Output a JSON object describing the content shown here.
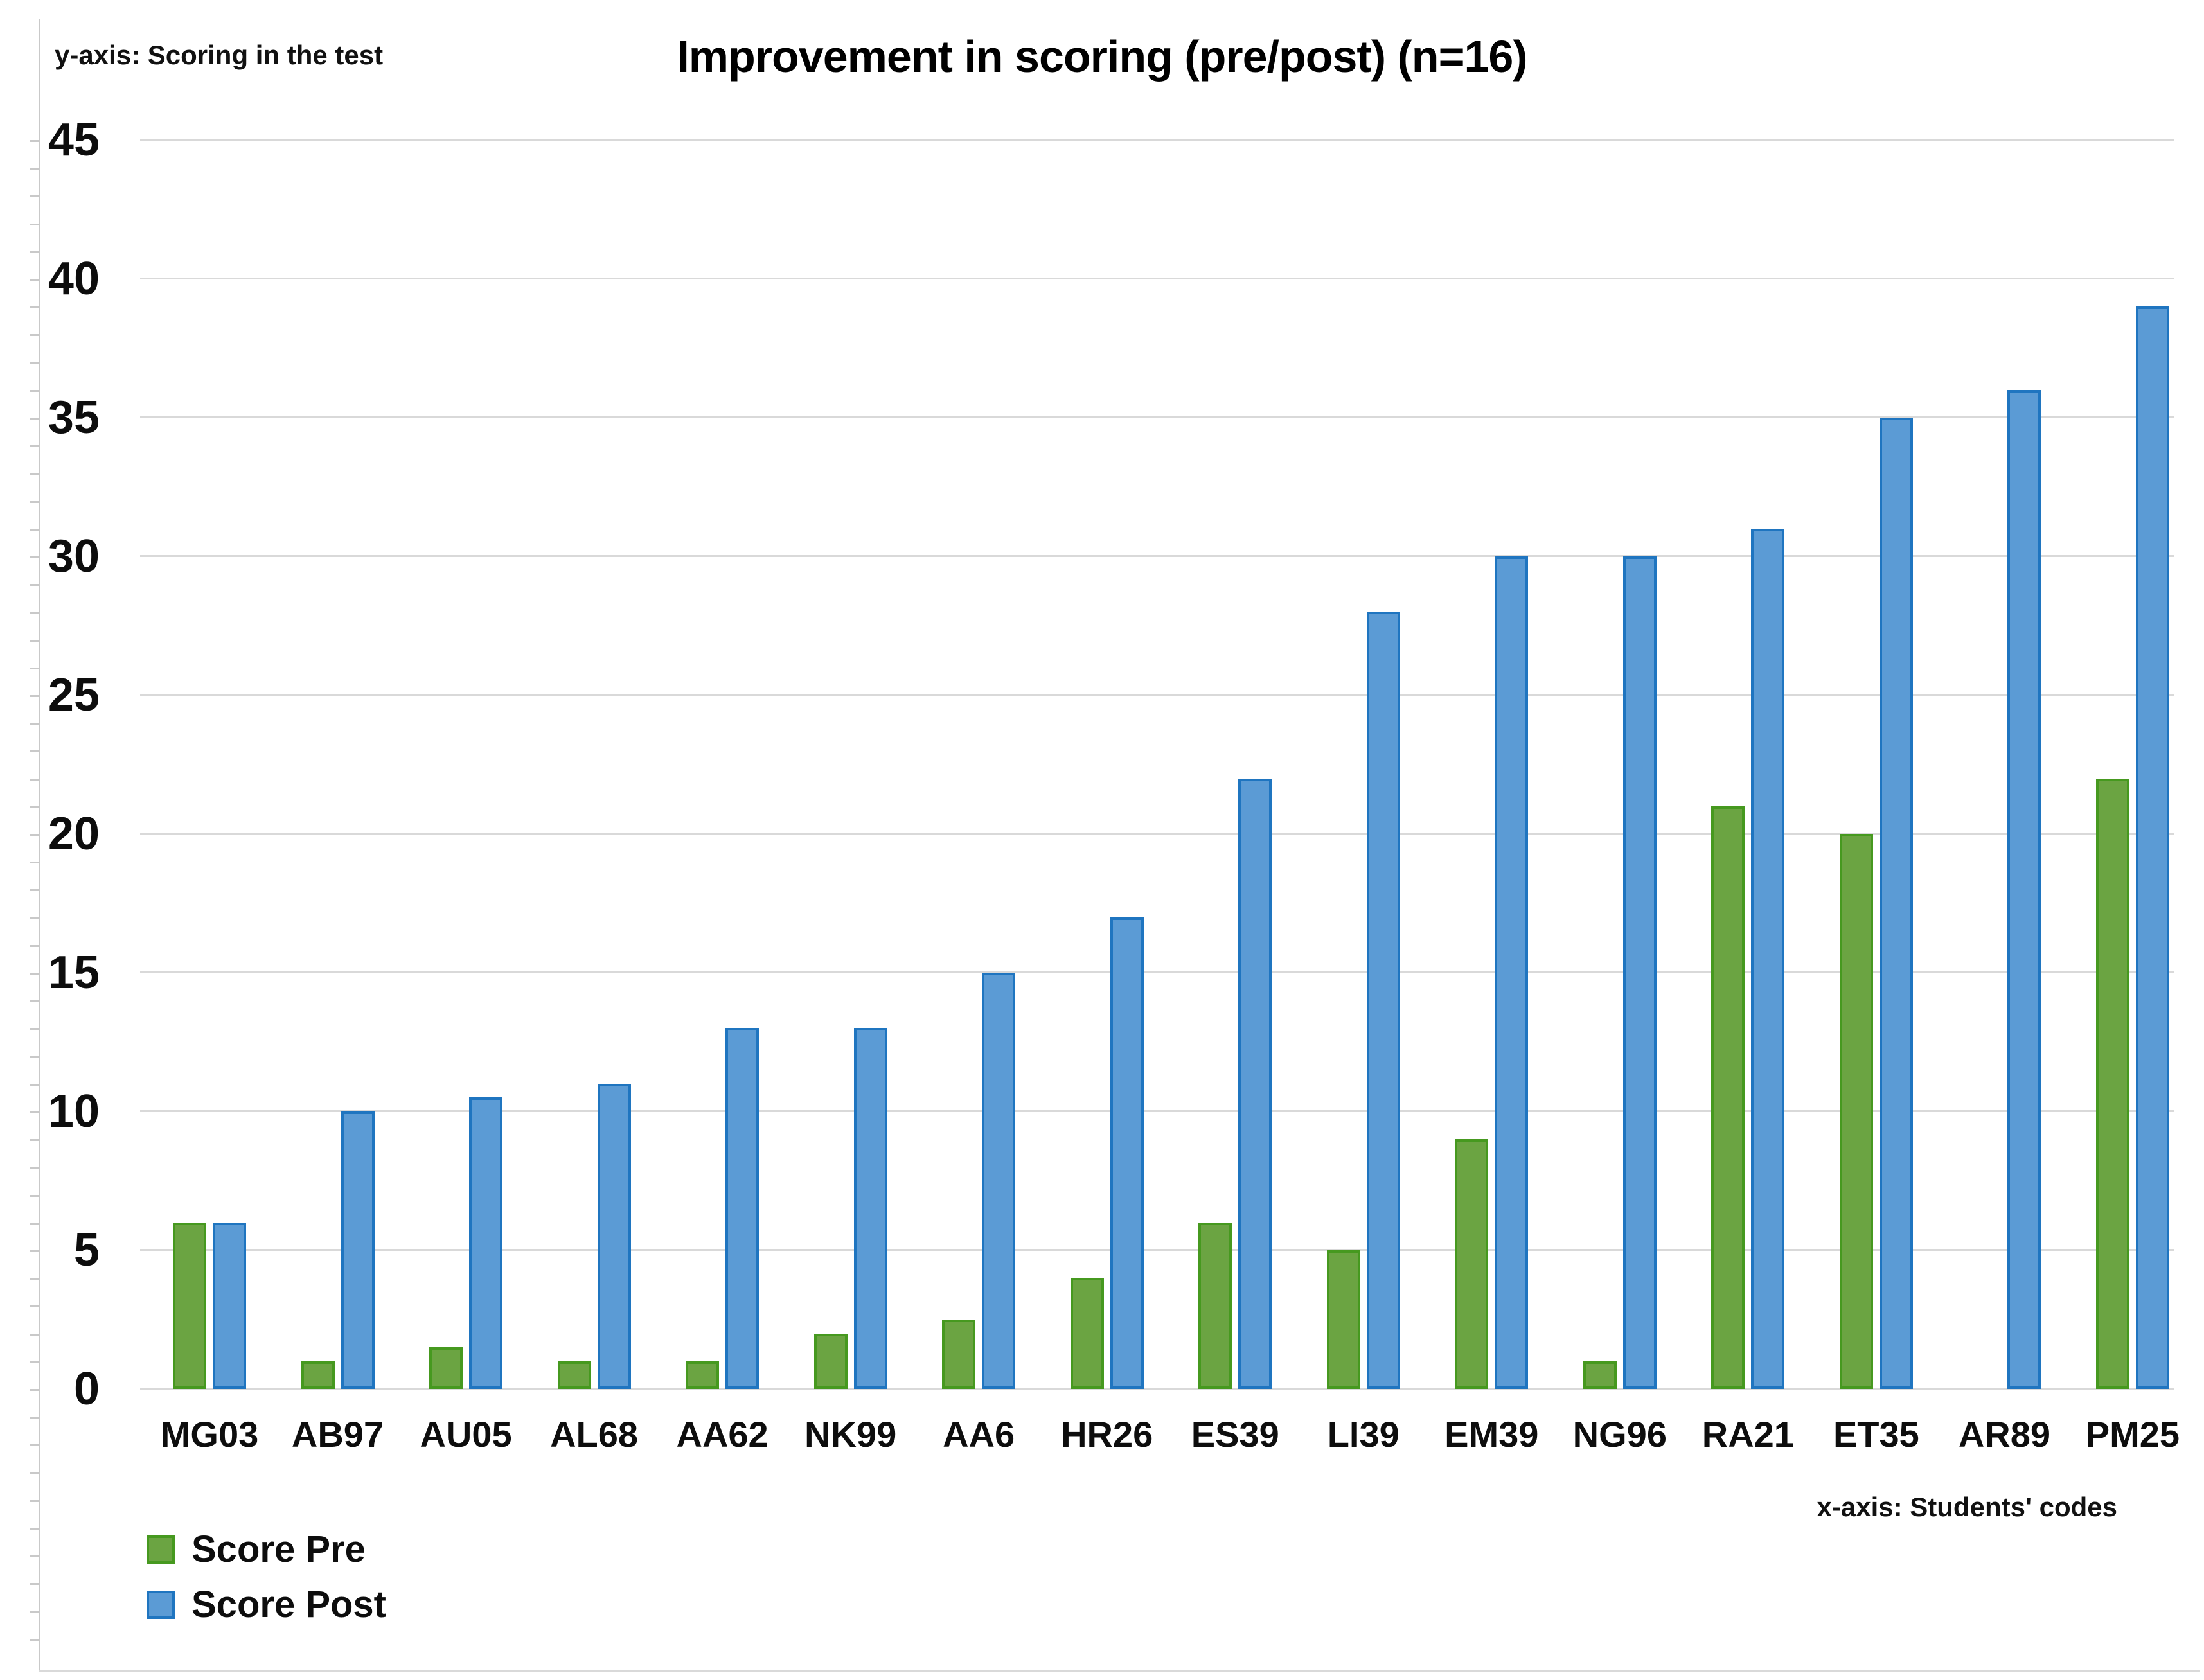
{
  "title": "Improvement in scoring (pre/post) (n=16)",
  "y_axis_note": "y-axis: Scoring in the test",
  "x_axis_note": "x-axis: Students' codes",
  "legend": [
    {
      "label": "Score Pre",
      "color": "#6ba442",
      "border": "#46991f"
    },
    {
      "label": "Score Post",
      "color": "#5b9bd5",
      "border": "#1f75c0"
    }
  ],
  "colors": {
    "pre_fill": "#6ba442",
    "pre_border": "#46991f",
    "post_fill": "#5b9bd5",
    "post_border": "#1f75c0",
    "gridline": "#d9d9d9",
    "axis": "#c9c9c9",
    "text": "#0d0d0d"
  },
  "chart_data": {
    "type": "bar",
    "title": "Improvement in scoring (pre/post) (n=16)",
    "xlabel": "x-axis: Students' codes",
    "ylabel": "y-axis: Scoring in the test",
    "categories": [
      "MG03",
      "AB97",
      "AU05",
      "AL68",
      "AA62",
      "NK99",
      "AA6",
      "HR26",
      "ES39",
      "LI39",
      "EM39",
      "NG96",
      "RA21",
      "ET35",
      "AR89",
      "PM25"
    ],
    "series": [
      {
        "name": "Score Pre",
        "values": [
          6,
          1,
          1.5,
          1,
          1,
          2,
          2.5,
          4,
          6,
          5,
          9,
          1,
          21,
          20,
          0,
          22
        ]
      },
      {
        "name": "Score Post",
        "values": [
          6,
          10,
          10.5,
          11,
          13,
          13,
          15,
          17,
          22,
          28,
          30,
          30,
          31,
          35,
          36,
          39
        ]
      }
    ],
    "ylim": [
      0,
      45
    ],
    "yticks": [
      0,
      5,
      10,
      15,
      20,
      25,
      30,
      35,
      40,
      45
    ],
    "grid": "horizontal",
    "legend_position": "bottom-left"
  }
}
